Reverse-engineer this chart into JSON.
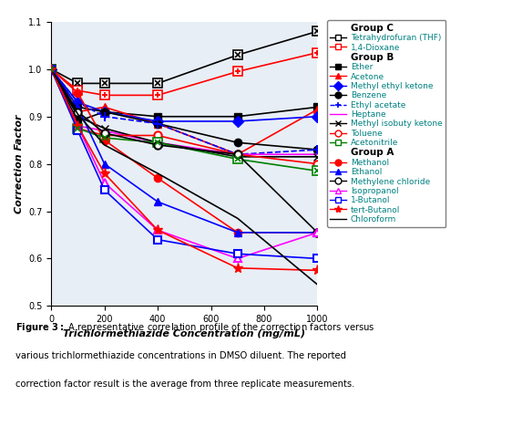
{
  "x": [
    0,
    100,
    200,
    400,
    700,
    1000
  ],
  "series": {
    "Tetrahydrofuran (THF)": {
      "y": [
        1.0,
        0.97,
        0.97,
        0.97,
        1.03,
        1.08
      ],
      "color": "#000000",
      "linestyle": "-",
      "marker": "s",
      "markerface": "white",
      "markeredge": "#000000",
      "group": "C",
      "marker_symbol": "x_in_box"
    },
    "1,4-Dioxane": {
      "y": [
        1.0,
        0.955,
        0.945,
        0.945,
        0.995,
        1.035
      ],
      "color": "#ff0000",
      "linestyle": "-",
      "marker": "s",
      "markerface": "white",
      "markeredge": "#ff0000",
      "group": "C",
      "marker_symbol": "plus_in_box"
    },
    "Ether": {
      "y": [
        1.0,
        0.89,
        0.91,
        0.9,
        0.9,
        0.92
      ],
      "color": "#000000",
      "linestyle": "-",
      "marker": "s",
      "markerface": "#000000",
      "markeredge": "#000000",
      "group": "B"
    },
    "Acetone": {
      "y": [
        1.0,
        0.91,
        0.92,
        0.885,
        0.82,
        0.915
      ],
      "color": "#ff0000",
      "linestyle": "-",
      "marker": "^",
      "markerface": "#ff0000",
      "markeredge": "#ff0000",
      "group": "B"
    },
    "Methyl ethyl ketone": {
      "y": [
        1.0,
        0.93,
        0.91,
        0.89,
        0.89,
        0.9
      ],
      "color": "#0000ff",
      "linestyle": "-",
      "marker": "D",
      "markerface": "#0000ff",
      "markeredge": "#0000ff",
      "group": "B"
    },
    "Benzene": {
      "y": [
        1.0,
        0.92,
        0.91,
        0.885,
        0.845,
        0.83
      ],
      "color": "#000000",
      "linestyle": "-",
      "marker": "o",
      "markerface": "#000000",
      "markeredge": "#000000",
      "group": "B"
    },
    "Ethyl acetate": {
      "y": [
        1.0,
        0.93,
        0.9,
        0.885,
        0.82,
        0.83
      ],
      "color": "#0000ff",
      "linestyle": "--",
      "marker": "+",
      "markerface": "#0000ff",
      "markeredge": "#0000ff",
      "group": "B"
    },
    "Heptane": {
      "y": [
        1.0,
        0.88,
        0.87,
        0.845,
        0.82,
        0.82
      ],
      "color": "#ff00ff",
      "linestyle": "-",
      "marker": "None",
      "markerface": "#ff00ff",
      "markeredge": "#ff00ff",
      "group": "B"
    },
    "Methyl isobuty ketone": {
      "y": [
        1.0,
        0.9,
        0.875,
        0.845,
        0.815,
        0.815
      ],
      "color": "#000000",
      "linestyle": "-",
      "marker": "x",
      "markerface": "#000000",
      "markeredge": "#000000",
      "group": "B"
    },
    "Toluene": {
      "y": [
        1.0,
        0.875,
        0.86,
        0.86,
        0.82,
        0.8
      ],
      "color": "#ff0000",
      "linestyle": "-",
      "marker": "o",
      "markerface": "white",
      "markeredge": "#ff0000",
      "group": "B"
    },
    "Acetonitrile": {
      "y": [
        1.0,
        0.875,
        0.855,
        0.845,
        0.81,
        0.785
      ],
      "color": "#008000",
      "linestyle": "-",
      "marker": "s",
      "markerface": "white",
      "markeredge": "#008000",
      "group": "B",
      "marker_symbol": "x_in_box_green"
    },
    "Methanol": {
      "y": [
        1.0,
        0.95,
        0.85,
        0.77,
        0.655,
        0.655
      ],
      "color": "#ff0000",
      "linestyle": "-",
      "marker": "o",
      "markerface": "#ff0000",
      "markeredge": "#ff0000",
      "group": "A"
    },
    "Ethanol": {
      "y": [
        1.0,
        0.92,
        0.8,
        0.72,
        0.655,
        0.655
      ],
      "color": "#0000ff",
      "linestyle": "-",
      "marker": "^",
      "markerface": "#0000ff",
      "markeredge": "#0000ff",
      "group": "A"
    },
    "Methylene chloride": {
      "y": [
        1.0,
        0.91,
        0.865,
        0.84,
        0.82,
        0.655
      ],
      "color": "#000000",
      "linestyle": "-",
      "marker": "o",
      "markerface": "white",
      "markeredge": "#000000",
      "group": "A"
    },
    "Isopropanol": {
      "y": [
        1.0,
        0.88,
        0.76,
        0.66,
        0.6,
        0.655
      ],
      "color": "#ff00ff",
      "linestyle": "-",
      "marker": "^",
      "markerface": "white",
      "markeredge": "#ff00ff",
      "group": "A"
    },
    "1-Butanol": {
      "y": [
        1.0,
        0.87,
        0.745,
        0.64,
        0.61,
        0.6
      ],
      "color": "#0000ff",
      "linestyle": "-",
      "marker": "s",
      "markerface": "white",
      "markeredge": "#0000ff",
      "group": "A"
    },
    "tert-Butanol": {
      "y": [
        1.0,
        0.88,
        0.78,
        0.66,
        0.58,
        0.575
      ],
      "color": "#ff0000",
      "linestyle": "-",
      "marker": "*",
      "markerface": "#ff0000",
      "markeredge": "#ff0000",
      "group": "A"
    },
    "Chloroform": {
      "y": [
        1.0,
        0.905,
        0.84,
        0.78,
        0.685,
        0.545
      ],
      "color": "#000000",
      "linestyle": "-",
      "marker": "None",
      "markerface": "#000000",
      "markeredge": "#000000",
      "group": "A"
    }
  },
  "xlabel": "Trichlormethiazide Concentration (mg/mL)",
  "ylabel": "Correction Factor",
  "xlim": [
    0,
    1000
  ],
  "ylim": [
    0.5,
    1.1
  ],
  "yticks": [
    0.5,
    0.6,
    0.7,
    0.8,
    0.9,
    1.0,
    1.1
  ],
  "xticks": [
    0,
    200,
    400,
    600,
    800,
    1000
  ],
  "background_color": "#e8eef5",
  "figure_caption": "Figure 3: A representative correlation profile of the correction factors versus various trichlormethiazide concentrations in DMSO diluent. The reported correction factor result is the average from three replicate measurements."
}
